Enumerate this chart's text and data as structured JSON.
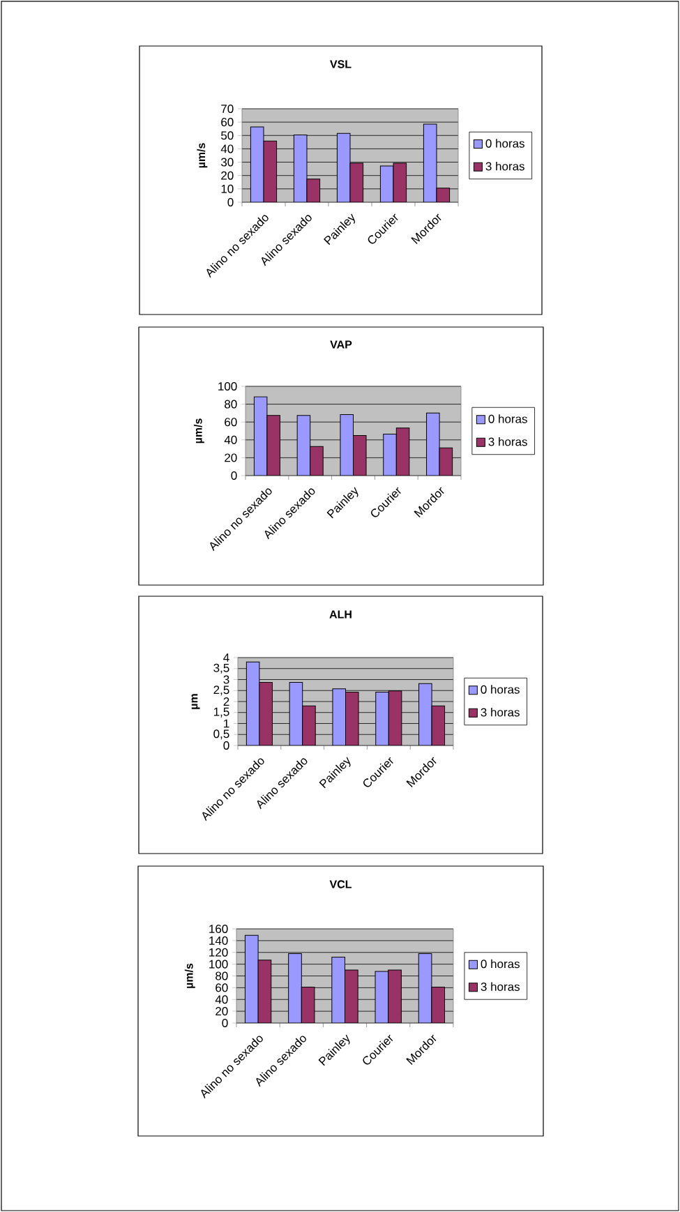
{
  "chart_data": [
    {
      "type": "bar",
      "title": "VSL",
      "ylabel": "µm/s",
      "categories": [
        "Alino no sexado",
        "Alino sexado",
        "Painley",
        "Courier",
        "Mordor"
      ],
      "ylim": [
        0,
        70
      ],
      "yticks": [
        0,
        10,
        20,
        30,
        40,
        50,
        60,
        70
      ],
      "grid": "y",
      "legend": "right",
      "series": [
        {
          "name": "0 horas",
          "color": "#9999ff",
          "values": [
            56.4,
            50.4,
            51.6,
            27.2,
            58.5
          ]
        },
        {
          "name": "3 horas",
          "color": "#993366",
          "values": [
            45.8,
            17.3,
            29.2,
            29.2,
            10.6
          ]
        }
      ]
    },
    {
      "type": "bar",
      "title": "VAP",
      "ylabel": "µm/s",
      "categories": [
        "Alino no sexado",
        "Alino sexado",
        "Painley",
        "Courier",
        "Mordor"
      ],
      "ylim": [
        0,
        100
      ],
      "yticks": [
        0,
        20,
        40,
        60,
        80,
        100
      ],
      "grid": "y",
      "legend": "right",
      "series": [
        {
          "name": "0 horas",
          "color": "#9999ff",
          "values": [
            88.3,
            67.4,
            68.4,
            46.5,
            70.2
          ]
        },
        {
          "name": "3 horas",
          "color": "#993366",
          "values": [
            67.4,
            32.6,
            44.9,
            53.3,
            31.0
          ]
        }
      ]
    },
    {
      "type": "bar",
      "title": "ALH",
      "ylabel": "µm",
      "categories": [
        "Alino no sexado",
        "Alino sexado",
        "Painley",
        "Courier",
        "Mordor"
      ],
      "ylim": [
        0,
        4
      ],
      "yticks": [
        0,
        {
          "value": 0.5,
          "label": "0,5"
        },
        1,
        {
          "value": 1.5,
          "label": "1,5"
        },
        2,
        {
          "value": 2.5,
          "label": "2,5"
        },
        3,
        {
          "value": 3.5,
          "label": "3,5"
        },
        4
      ],
      "grid": "y",
      "legend": "right",
      "series": [
        {
          "name": "0 horas",
          "color": "#9999ff",
          "values": [
            3.8,
            2.87,
            2.58,
            2.43,
            2.82
          ]
        },
        {
          "name": "3 horas",
          "color": "#993366",
          "values": [
            2.87,
            1.8,
            2.43,
            2.48,
            1.8
          ]
        }
      ]
    },
    {
      "type": "bar",
      "title": "VCL",
      "ylabel": "µm/s",
      "categories": [
        "Alino no sexado",
        "Alino sexado",
        "Painley",
        "Courier",
        "Mordor"
      ],
      "ylim": [
        0,
        160
      ],
      "yticks": [
        0,
        20,
        40,
        60,
        80,
        100,
        120,
        140,
        160
      ],
      "grid": "y",
      "legend": "right",
      "series": [
        {
          "name": "0 horas",
          "color": "#9999ff",
          "values": [
            149,
            118,
            112,
            87.6,
            118
          ]
        },
        {
          "name": "3 horas",
          "color": "#993366",
          "values": [
            107,
            61,
            90,
            90,
            61
          ]
        }
      ]
    }
  ]
}
